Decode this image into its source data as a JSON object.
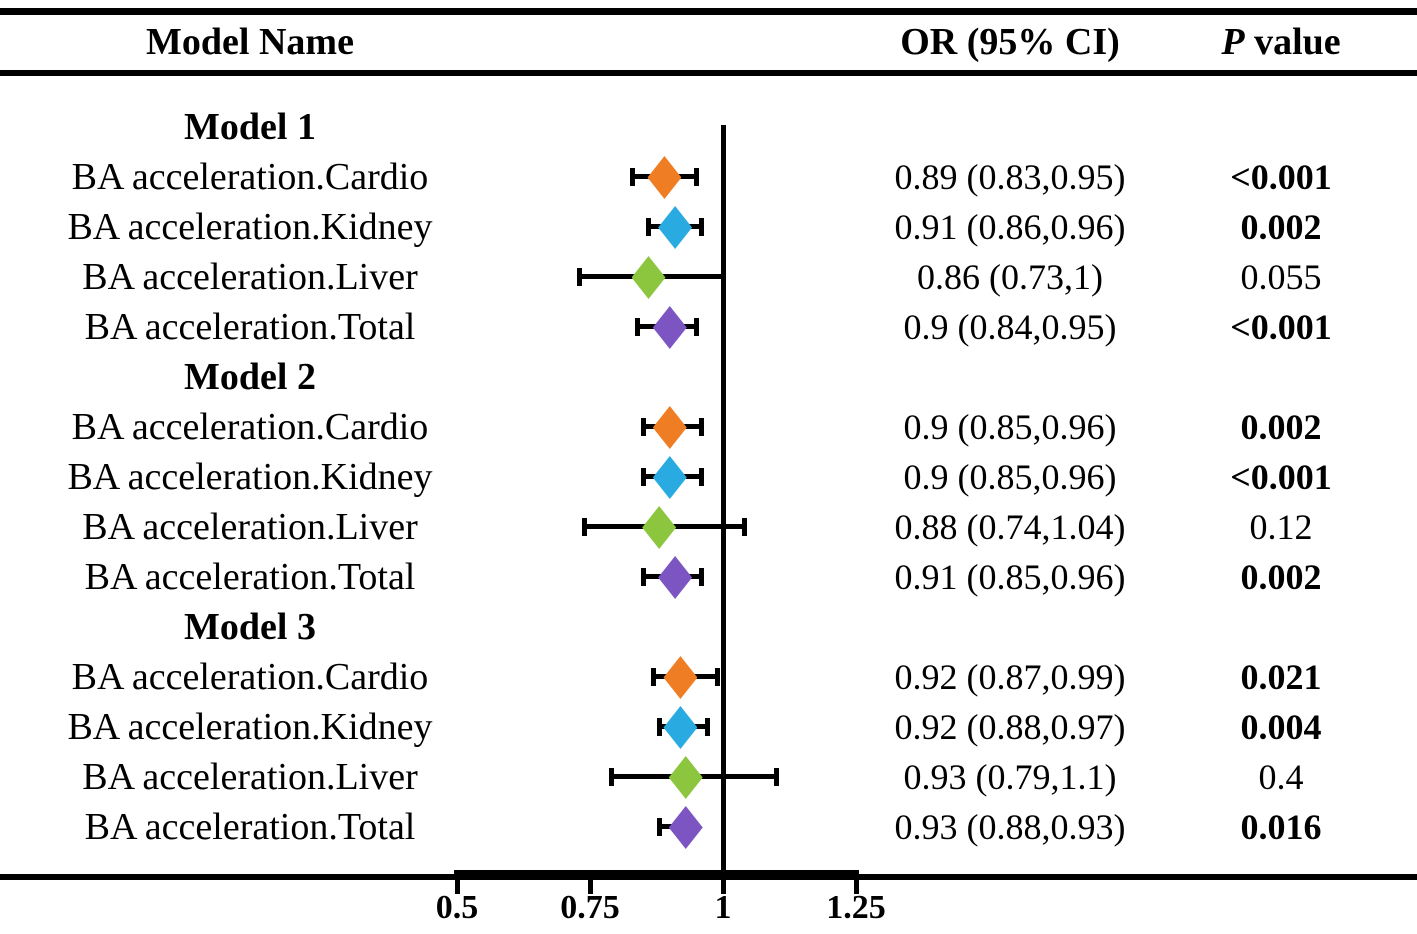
{
  "title_row": {
    "model_name": "Model Name",
    "or_ci": "OR (95% CI)",
    "p_italic": "P",
    "p_suffix": " value"
  },
  "colors": {
    "cardio": "#EF7D24",
    "kidney": "#29ABE2",
    "liver": "#8CC63F",
    "total": "#7D55C2",
    "line": "#000000"
  },
  "chart_data": {
    "type": "forest",
    "columns": [
      "Model Name",
      "OR (95% CI)",
      "P value"
    ],
    "x_axis": {
      "tick_labels": [
        "0.5",
        "0.75",
        "1",
        "1.25"
      ],
      "tick_values": [
        0.5,
        0.75,
        1,
        1.25
      ],
      "ref_line": 1.0,
      "xlim": [
        0.45,
        1.3
      ]
    },
    "groups": [
      {
        "heading": "Model 1",
        "rows": [
          {
            "label": "BA acceleration.Cardio",
            "organ": "cardio",
            "or": 0.89,
            "ci_low": 0.83,
            "ci_high": 0.95,
            "or_text": "0.89 (0.83,0.95)",
            "p_text": "<0.001",
            "p_bold": true
          },
          {
            "label": "BA acceleration.Kidney",
            "organ": "kidney",
            "or": 0.91,
            "ci_low": 0.86,
            "ci_high": 0.96,
            "or_text": "0.91 (0.86,0.96)",
            "p_text": "0.002",
            "p_bold": true
          },
          {
            "label": "BA acceleration.Liver",
            "organ": "liver",
            "or": 0.86,
            "ci_low": 0.73,
            "ci_high": 1.0,
            "or_text": "0.86 (0.73,1)",
            "p_text": "0.055",
            "p_bold": false
          },
          {
            "label": "BA acceleration.Total",
            "organ": "total",
            "or": 0.9,
            "ci_low": 0.84,
            "ci_high": 0.95,
            "or_text": "0.9 (0.84,0.95)",
            "p_text": "<0.001",
            "p_bold": true
          }
        ]
      },
      {
        "heading": "Model 2",
        "rows": [
          {
            "label": "BA acceleration.Cardio",
            "organ": "cardio",
            "or": 0.9,
            "ci_low": 0.85,
            "ci_high": 0.96,
            "or_text": "0.9 (0.85,0.96)",
            "p_text": "0.002",
            "p_bold": true
          },
          {
            "label": "BA acceleration.Kidney",
            "organ": "kidney",
            "or": 0.9,
            "ci_low": 0.85,
            "ci_high": 0.96,
            "or_text": "0.9 (0.85,0.96)",
            "p_text": "<0.001",
            "p_bold": true
          },
          {
            "label": "BA acceleration.Liver",
            "organ": "liver",
            "or": 0.88,
            "ci_low": 0.74,
            "ci_high": 1.04,
            "or_text": "0.88 (0.74,1.04)",
            "p_text": "0.12",
            "p_bold": false
          },
          {
            "label": "BA acceleration.Total",
            "organ": "total",
            "or": 0.91,
            "ci_low": 0.85,
            "ci_high": 0.96,
            "or_text": "0.91 (0.85,0.96)",
            "p_text": "0.002",
            "p_bold": true
          }
        ]
      },
      {
        "heading": "Model 3",
        "rows": [
          {
            "label": "BA acceleration.Cardio",
            "organ": "cardio",
            "or": 0.92,
            "ci_low": 0.87,
            "ci_high": 0.99,
            "or_text": "0.92 (0.87,0.99)",
            "p_text": "0.021",
            "p_bold": true
          },
          {
            "label": "BA acceleration.Kidney",
            "organ": "kidney",
            "or": 0.92,
            "ci_low": 0.88,
            "ci_high": 0.97,
            "or_text": "0.92 (0.88,0.97)",
            "p_text": "0.004",
            "p_bold": true
          },
          {
            "label": "BA acceleration.Liver",
            "organ": "liver",
            "or": 0.93,
            "ci_low": 0.79,
            "ci_high": 1.1,
            "or_text": "0.93 (0.79,1.1)",
            "p_text": "0.4",
            "p_bold": false
          },
          {
            "label": "BA acceleration.Total",
            "organ": "total",
            "or": 0.93,
            "ci_low": 0.88,
            "ci_high": 0.93,
            "or_text": "0.93 (0.88,0.93)",
            "p_text": "0.016",
            "p_bold": true
          }
        ]
      }
    ]
  }
}
